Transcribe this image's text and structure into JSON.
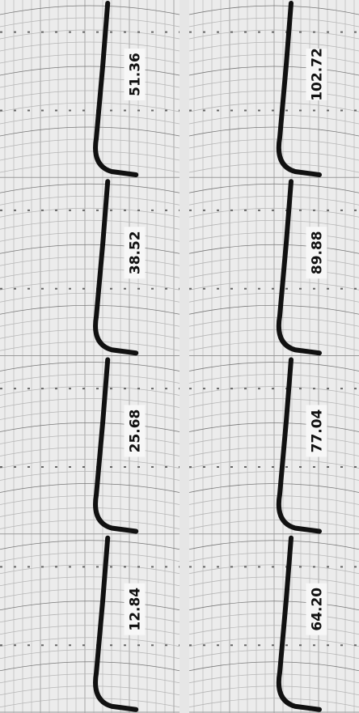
{
  "strips": [
    {
      "labels": [
        "51.36",
        "38.52",
        "25.68",
        "12.84"
      ]
    },
    {
      "labels": [
        "102.72",
        "89.88",
        "77.04",
        "64.20"
      ]
    }
  ]
}
